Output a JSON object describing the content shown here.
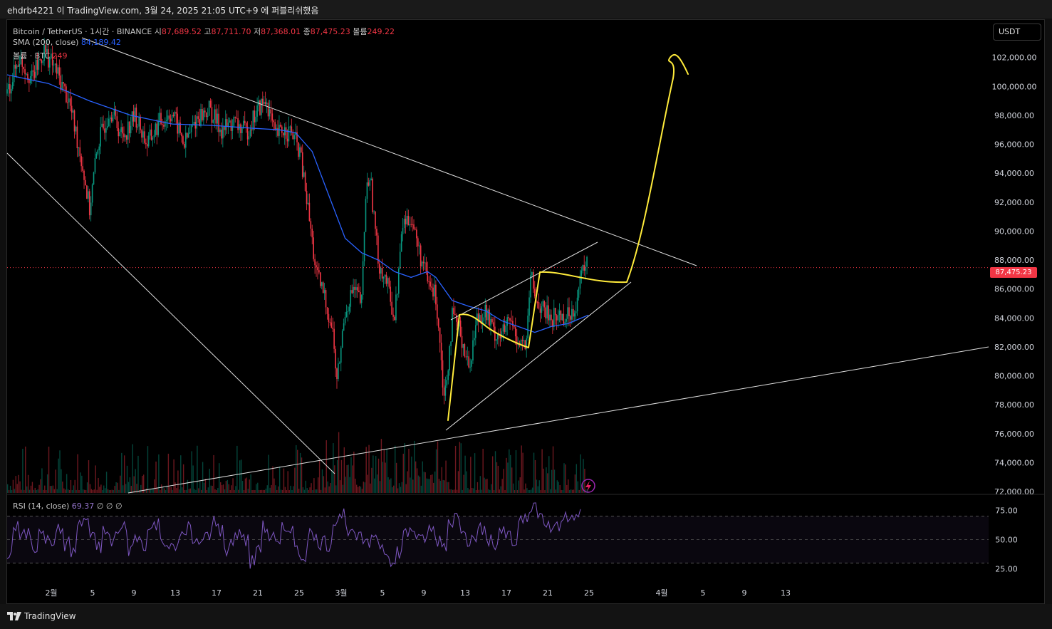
{
  "topbar": {
    "text": "ehdrb4221 이 TradingView.com, 3월 24, 2025 21:05 UTC+9 에 퍼블리쉬했음"
  },
  "legend": {
    "symbol": "Bitcoin / TetherUS · 1시간 · BINANCE",
    "o_label": "시",
    "o_val": "87,689.52",
    "h_label": "고",
    "h_val": "87,711.70",
    "l_label": "저",
    "l_val": "87,368.01",
    "c_label": "종",
    "c_val": "87,475.23",
    "v_label": "볼륨",
    "v_val": "249.22",
    "sma_label": "SMA (200, close)",
    "sma_val": "84,189.42",
    "vol_label": "볼륨 · BTC",
    "vol_val": "249",
    "rsi_label": "RSI (14, close)",
    "rsi_val": "69.37",
    "rsi_extra": "∅ ∅ ∅"
  },
  "currency_button": "USDT",
  "last_price_badge": "87,475.23",
  "footer": {
    "brand": "TradingView"
  },
  "colors": {
    "up": "#089981",
    "down": "#f23645",
    "sma": "#2962ff",
    "rsi": "#7e57c2",
    "drawing_white": "#e0e0e0",
    "drawing_yellow": "#ffeb3b"
  },
  "chart_data": [
    {
      "type": "candlestick",
      "title": "Bitcoin / TetherUS · 1시간 · BINANCE",
      "ylim": [
        72000,
        104000
      ],
      "y_ticks": [
        "102,000.00",
        "100,000.00",
        "98,000.00",
        "96,000.00",
        "94,000.00",
        "92,000.00",
        "90,000.00",
        "88,000.00",
        "86,000.00",
        "84,000.00",
        "82,000.00",
        "80,000.00",
        "78,000.00",
        "76,000.00",
        "74,000.00",
        "72,000.00"
      ],
      "x_ticks": [
        "2월",
        "5",
        "9",
        "13",
        "17",
        "21",
        "25",
        "3월",
        "5",
        "9",
        "13",
        "17",
        "21",
        "25",
        "4월",
        "5",
        "9",
        "13"
      ],
      "last_price": 87475.23,
      "series": [
        {
          "name": "SMA (200, close)",
          "last": 84189.42
        }
      ],
      "price_path": [
        [
          0,
          99500
        ],
        [
          3,
          102000
        ],
        [
          6,
          100500
        ],
        [
          9,
          102500
        ],
        [
          12,
          101000
        ],
        [
          15,
          99000
        ],
        [
          18,
          95000
        ],
        [
          20,
          91500
        ],
        [
          22,
          96000
        ],
        [
          25,
          98500
        ],
        [
          28,
          96500
        ],
        [
          31,
          98000
        ],
        [
          34,
          96000
        ],
        [
          37,
          97500
        ],
        [
          40,
          98200
        ],
        [
          43,
          96000
        ],
        [
          46,
          97800
        ],
        [
          49,
          98400
        ],
        [
          52,
          97000
        ],
        [
          55,
          97500
        ],
        [
          58,
          96800
        ],
        [
          61,
          98500
        ],
        [
          63,
          99000
        ],
        [
          65,
          96500
        ],
        [
          67,
          97000
        ],
        [
          69,
          96800
        ],
        [
          71,
          95500
        ],
        [
          73,
          91500
        ],
        [
          75,
          87000
        ],
        [
          77,
          85500
        ],
        [
          79,
          83000
        ],
        [
          80,
          79500
        ],
        [
          82,
          84500
        ],
        [
          84,
          86000
        ],
        [
          86,
          85000
        ],
        [
          87,
          92500
        ],
        [
          88,
          94000
        ],
        [
          90,
          88000
        ],
        [
          92,
          86500
        ],
        [
          94,
          84000
        ],
        [
          96,
          90500
        ],
        [
          98,
          91000
        ],
        [
          100,
          88500
        ],
        [
          102,
          86500
        ],
        [
          104,
          85500
        ],
        [
          105,
          82500
        ],
        [
          106,
          78500
        ],
        [
          107,
          81000
        ],
        [
          108,
          84000
        ],
        [
          110,
          83000
        ],
        [
          112,
          80500
        ],
        [
          114,
          84000
        ],
        [
          116,
          84500
        ],
        [
          118,
          83000
        ],
        [
          120,
          82800
        ],
        [
          122,
          83800
        ],
        [
          124,
          82500
        ],
        [
          126,
          82000
        ],
        [
          127,
          87000
        ],
        [
          128,
          85500
        ],
        [
          130,
          84500
        ],
        [
          132,
          84000
        ],
        [
          134,
          84200
        ],
        [
          136,
          84100
        ],
        [
          138,
          85000
        ],
        [
          140,
          87700
        ],
        [
          141,
          87475
        ]
      ],
      "sma_path": [
        [
          0,
          100800
        ],
        [
          10,
          100200
        ],
        [
          20,
          99000
        ],
        [
          30,
          98000
        ],
        [
          40,
          97400
        ],
        [
          50,
          97300
        ],
        [
          60,
          97100
        ],
        [
          66,
          97000
        ],
        [
          70,
          96800
        ],
        [
          74,
          95500
        ],
        [
          78,
          92500
        ],
        [
          82,
          89500
        ],
        [
          86,
          88500
        ],
        [
          90,
          88000
        ],
        [
          94,
          87200
        ],
        [
          98,
          86800
        ],
        [
          102,
          87200
        ],
        [
          104,
          86800
        ],
        [
          108,
          85200
        ],
        [
          112,
          84800
        ],
        [
          116,
          84500
        ],
        [
          120,
          83800
        ],
        [
          124,
          83400
        ],
        [
          128,
          83000
        ],
        [
          132,
          83400
        ],
        [
          136,
          83600
        ],
        [
          141,
          84189
        ]
      ]
    },
    {
      "type": "line",
      "title": "RSI (14, close)",
      "ylim": [
        15,
        85
      ],
      "y_ticks": [
        "75.00",
        "50.00",
        "25.00"
      ],
      "last": 69.37,
      "values": [
        38,
        60,
        52,
        55,
        44,
        62,
        48,
        50,
        58,
        46,
        40,
        62,
        68,
        50,
        44,
        56,
        49,
        55,
        60,
        42,
        52,
        47,
        58,
        63,
        51,
        46,
        40,
        55,
        60,
        45,
        48,
        53,
        66,
        58,
        42,
        50,
        56,
        49,
        30,
        45,
        60,
        52,
        44,
        58,
        62,
        40,
        36,
        55,
        50,
        48,
        46,
        68,
        72,
        60,
        52,
        50,
        44,
        56,
        47,
        42,
        28,
        40,
        55,
        60,
        48,
        52,
        58,
        50,
        46,
        66,
        70,
        62,
        50,
        55,
        58,
        49,
        44,
        62,
        54,
        40,
        66,
        72,
        76,
        68,
        64,
        58,
        60,
        70,
        73,
        69
      ]
    }
  ]
}
